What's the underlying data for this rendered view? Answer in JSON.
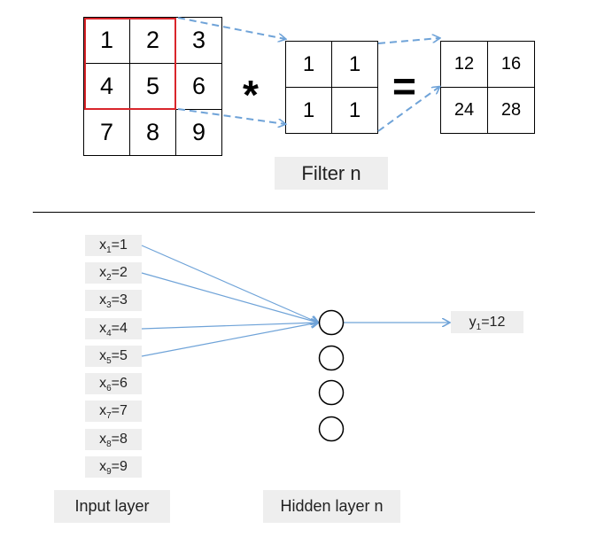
{
  "convolution": {
    "input_matrix": [
      [
        "1",
        "2",
        "3"
      ],
      [
        "4",
        "5",
        "6"
      ],
      [
        "7",
        "8",
        "9"
      ]
    ],
    "operator_multiply": "*",
    "filter_matrix": [
      [
        "1",
        "1"
      ],
      [
        "1",
        "1"
      ]
    ],
    "operator_equals": "=",
    "output_matrix": [
      [
        "12",
        "16"
      ],
      [
        "24",
        "28"
      ]
    ],
    "filter_label": "Filter n"
  },
  "network": {
    "inputs": [
      {
        "var": "x",
        "sub": "1",
        "value": "=1"
      },
      {
        "var": "x",
        "sub": "2",
        "value": "=2"
      },
      {
        "var": "x",
        "sub": "3",
        "value": "=3"
      },
      {
        "var": "x",
        "sub": "4",
        "value": "=4"
      },
      {
        "var": "x",
        "sub": "5",
        "value": "=5"
      },
      {
        "var": "x",
        "sub": "6",
        "value": "=6"
      },
      {
        "var": "x",
        "sub": "7",
        "value": "=7"
      },
      {
        "var": "x",
        "sub": "8",
        "value": "=8"
      },
      {
        "var": "x",
        "sub": "9",
        "value": "=9"
      }
    ],
    "output": {
      "var": "y",
      "sub": "1",
      "value": "=12"
    },
    "input_layer_label": "Input layer",
    "hidden_layer_label": "Hidden layer n"
  },
  "colors": {
    "window_border": "#d9262b",
    "arrow": "#6fa3d8",
    "label_bg": "#eeeeee"
  }
}
